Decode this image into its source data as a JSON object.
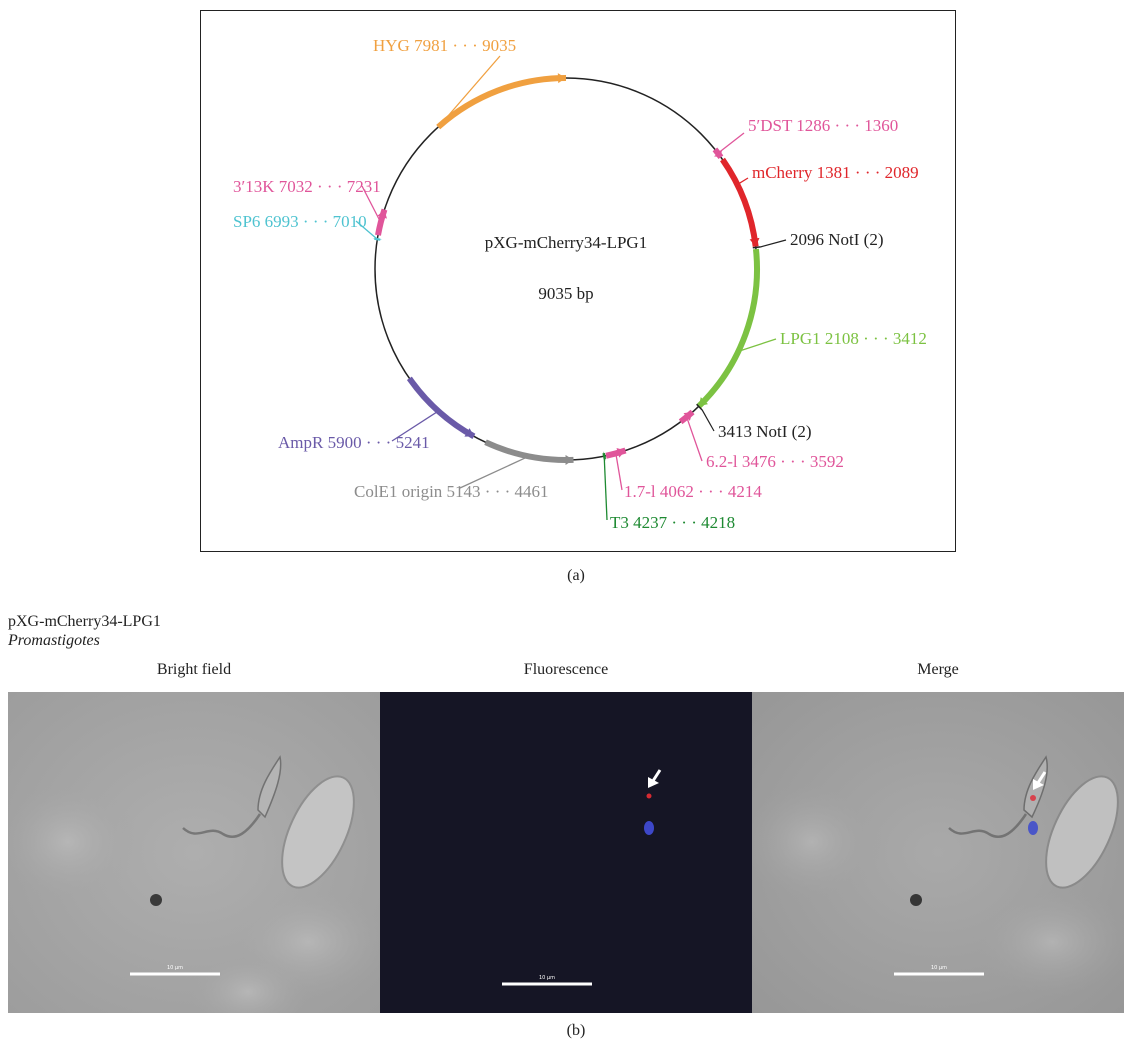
{
  "plasmid": {
    "name": "pXG-mCherry34-LPG1",
    "size": "9035 bp",
    "total_bp": 9035,
    "features": [
      {
        "id": "hyg",
        "label": "HYG 7981 · · · 9035",
        "color": "#f0a040",
        "start": 7981,
        "end": 9035,
        "direction": "forward"
      },
      {
        "id": "dst5",
        "label": "5′DST 1286 · · · 1360",
        "color": "#e0559a",
        "start": 1286,
        "end": 1360,
        "direction": "forward"
      },
      {
        "id": "mcherry",
        "label": "mCherry 1381 · · · 2089",
        "color": "#e0262b",
        "start": 1381,
        "end": 2089,
        "direction": "forward"
      },
      {
        "id": "lpg1",
        "label": "LPG1 2108 · · · 3412",
        "color": "#7cc242",
        "start": 2108,
        "end": 3412,
        "direction": "forward"
      },
      {
        "id": "l62",
        "label": "6.2-l 3476 · · · 3592",
        "color": "#e0559a",
        "start": 3476,
        "end": 3592,
        "direction": "reverse"
      },
      {
        "id": "l17",
        "label": "1.7-l 4062 · · · 4214",
        "color": "#e0559a",
        "start": 4062,
        "end": 4214,
        "direction": "reverse"
      },
      {
        "id": "t3",
        "label": "T3 4237 · · · 4218",
        "color": "#1e8a32",
        "start": 4218,
        "end": 4237,
        "direction": "reverse"
      },
      {
        "id": "cole1",
        "label": "ColE1 origin 5143 · · · 4461",
        "color": "#8c8c8c",
        "start": 4461,
        "end": 5143,
        "direction": "reverse"
      },
      {
        "id": "ampr",
        "label": "AmpR 5900 · · · 5241",
        "color": "#6a5aa8",
        "start": 5241,
        "end": 5900,
        "direction": "reverse"
      },
      {
        "id": "sp6",
        "label": "SP6 6993 · · · 7010",
        "color": "#4ec3d0",
        "start": 6993,
        "end": 7010,
        "direction": "forward"
      },
      {
        "id": "k13",
        "label": "3′13K 7032 · · · 7231",
        "color": "#e0559a",
        "start": 7032,
        "end": 7231,
        "direction": "forward"
      }
    ],
    "sites": [
      {
        "id": "notI-a",
        "label": "2096 NotI (2)",
        "position": 2096,
        "color": "#222222"
      },
      {
        "id": "notI-b",
        "label": "3413 NotI (2)",
        "position": 3413,
        "color": "#222222"
      }
    ]
  },
  "panel_a_caption": "(a)",
  "panel_b": {
    "title_line1": "pXG-mCherry34-LPG1",
    "title_line2": "Promastigotes",
    "columns": [
      {
        "title": "Bright field",
        "scale_label": "10 μm"
      },
      {
        "title": "Fluorescence",
        "scale_label": "10 μm"
      },
      {
        "title": "Merge",
        "scale_label": "10 μm"
      }
    ],
    "caption": "(b)"
  }
}
